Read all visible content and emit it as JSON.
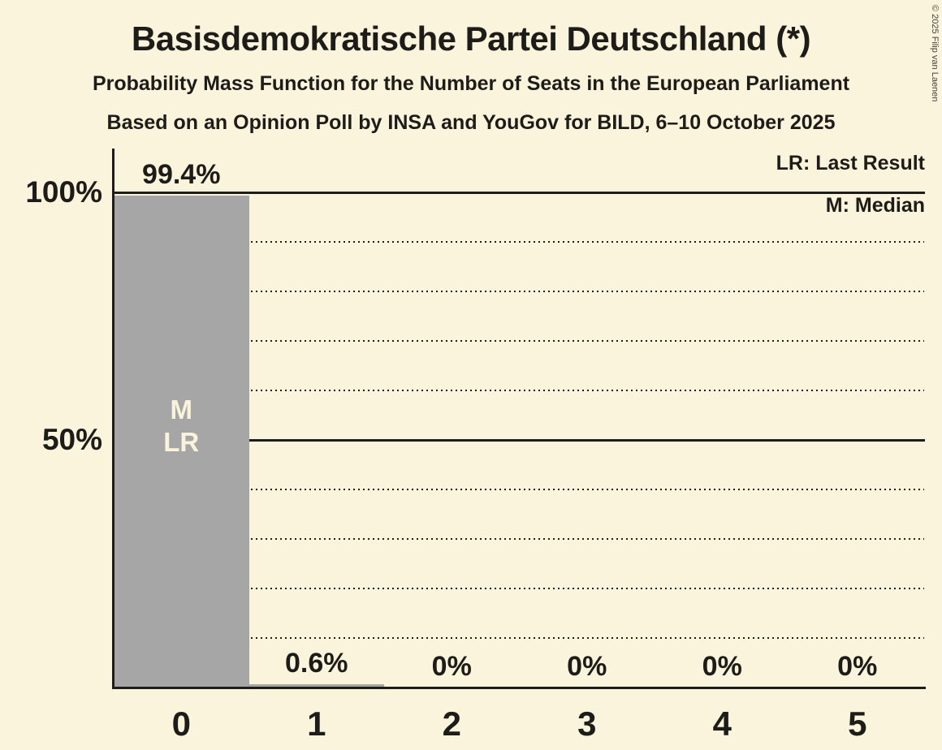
{
  "header": {
    "title": "Basisdemokratische Partei Deutschland (*)",
    "subtitle_line1": "Probability Mass Function for the Number of Seats in the European Parliament",
    "subtitle_line2": "Based on an Opinion Poll by INSA and YouGov for BILD, 6–10 October 2025"
  },
  "copyright": "© 2025 Filip van Laenen",
  "legend": {
    "last_result": "LR: Last Result",
    "median": "M: Median"
  },
  "colors": {
    "background": "#FBF4DC",
    "bar": "#A6A6A6",
    "text": "#1D1C19",
    "bar_annotation": "#FAF3DC"
  },
  "chart_data": {
    "type": "bar",
    "title": "Probability Mass Function for the Number of Seats in the European Parliament",
    "categories": [
      "0",
      "1",
      "2",
      "3",
      "4",
      "5"
    ],
    "values": [
      99.4,
      0.6,
      0,
      0,
      0,
      0
    ],
    "value_labels": [
      "99.4%",
      "0.6%",
      "0%",
      "0%",
      "0%",
      "0%"
    ],
    "ylim": [
      0,
      100
    ],
    "y_ticks": [
      {
        "value": 100,
        "label": "100%"
      },
      {
        "value": 50,
        "label": "50%"
      }
    ],
    "gridlines_solid": [
      100,
      50
    ],
    "gridlines_dotted": [
      90,
      80,
      70,
      60,
      40,
      30,
      20,
      10
    ],
    "grid": true,
    "legend_position": "top-right",
    "annotations": {
      "bar_index": 0,
      "lines": [
        "M",
        "LR"
      ]
    },
    "median_seats": 0,
    "last_result_seats": 0
  }
}
